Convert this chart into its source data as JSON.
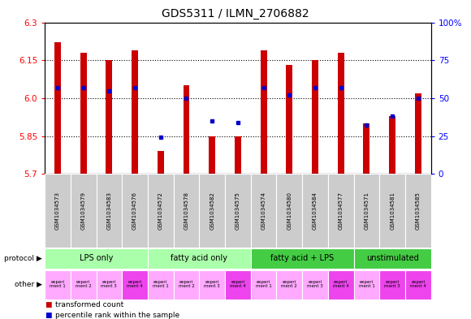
{
  "title": "GDS5311 / ILMN_2706882",
  "samples": [
    "GSM1034573",
    "GSM1034579",
    "GSM1034583",
    "GSM1034576",
    "GSM1034572",
    "GSM1034578",
    "GSM1034582",
    "GSM1034575",
    "GSM1034574",
    "GSM1034580",
    "GSM1034584",
    "GSM1034577",
    "GSM1034571",
    "GSM1034581",
    "GSM1034585"
  ],
  "red_values": [
    6.22,
    6.18,
    6.15,
    6.19,
    5.79,
    6.05,
    5.85,
    5.85,
    6.19,
    6.13,
    6.15,
    6.18,
    5.9,
    5.93,
    6.02
  ],
  "blue_values": [
    57,
    57,
    55,
    57,
    24,
    50,
    35,
    34,
    57,
    52,
    57,
    57,
    32,
    38,
    50
  ],
  "ylim_left": [
    5.7,
    6.3
  ],
  "ylim_right": [
    0,
    100
  ],
  "yticks_left": [
    5.7,
    5.85,
    6.0,
    6.15,
    6.3
  ],
  "yticks_right": [
    0,
    25,
    50,
    75,
    100
  ],
  "ytick_labels_right": [
    "0",
    "25",
    "50",
    "75",
    "100%"
  ],
  "groups": [
    {
      "label": "LPS only",
      "start": 0,
      "end": 4,
      "color": "#aaffaa"
    },
    {
      "label": "fatty acid only",
      "start": 4,
      "end": 8,
      "color": "#aaffaa"
    },
    {
      "label": "fatty acid + LPS",
      "start": 8,
      "end": 12,
      "color": "#44cc44"
    },
    {
      "label": "unstimulated",
      "start": 12,
      "end": 15,
      "color": "#44cc44"
    }
  ],
  "other_colors": [
    "#ffaaff",
    "#ffaaff",
    "#ffaaff",
    "#ee44ee",
    "#ffaaff",
    "#ffaaff",
    "#ffaaff",
    "#ee44ee",
    "#ffaaff",
    "#ffaaff",
    "#ffaaff",
    "#ee44ee",
    "#ffaaff",
    "#ee44ee",
    "#ee44ee"
  ],
  "other_labels": [
    "experi\nment 1",
    "experi\nment 2",
    "experi\nment 3",
    "experi\nment 4",
    "experi\nment 1",
    "experi\nment 2",
    "experi\nment 3",
    "experi\nment 4",
    "experi\nment 1",
    "experi\nment 2",
    "experi\nment 3",
    "experi\nment 4",
    "experi\nment 1",
    "experi\nment 3",
    "experi\nment 4"
  ],
  "bar_color": "#cc0000",
  "dot_color": "#0000cc",
  "bg_color": "#ffffff",
  "bar_bottom": 5.7,
  "bar_width": 0.25,
  "chart_bg": "#ffffff"
}
